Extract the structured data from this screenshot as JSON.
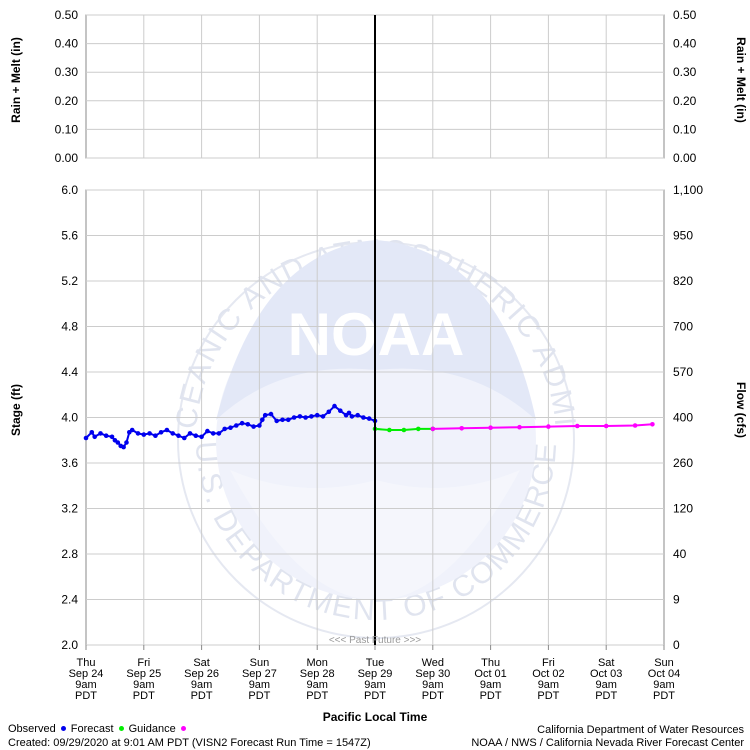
{
  "chart_data": {
    "type": "line",
    "upper_panel": {
      "left_ylabel": "Rain + Melt (in)",
      "right_ylabel": "Rain + Melt (in)",
      "ylim": [
        0.0,
        0.5
      ],
      "yticks": [
        "0.00",
        "0.10",
        "0.20",
        "0.30",
        "0.40",
        "0.50"
      ]
    },
    "lower_panel": {
      "left_ylabel": "Stage (ft)",
      "right_ylabel": "Flow (cfs)",
      "ylim": [
        2.0,
        6.0
      ],
      "left_yticks": [
        {
          "label": "2.0",
          "value": 2.0
        },
        {
          "label": "2.4",
          "value": 2.4
        },
        {
          "label": "2.8",
          "value": 2.8
        },
        {
          "label": "3.2",
          "value": 3.2
        },
        {
          "label": "3.6",
          "value": 3.6
        },
        {
          "label": "4.0",
          "value": 4.0
        },
        {
          "label": "4.4",
          "value": 4.4
        },
        {
          "label": "4.8",
          "value": 4.8
        },
        {
          "label": "5.2",
          "value": 5.2
        },
        {
          "label": "5.6",
          "value": 5.6
        },
        {
          "label": "6.0",
          "value": 6.0
        }
      ],
      "right_yticks": [
        {
          "label": "0",
          "value": 2.0
        },
        {
          "label": "9",
          "value": 2.4
        },
        {
          "label": "40",
          "value": 2.8
        },
        {
          "label": "120",
          "value": 3.2
        },
        {
          "label": "260",
          "value": 3.6
        },
        {
          "label": "400",
          "value": 4.0
        },
        {
          "label": "570",
          "value": 4.4
        },
        {
          "label": "700",
          "value": 4.8
        },
        {
          "label": "820",
          "value": 5.2
        },
        {
          "label": "950",
          "value": 5.6
        },
        {
          "label": "1,100",
          "value": 6.0
        }
      ],
      "past_future_label": "<<< Past   Future >>>"
    },
    "xlabel": "Pacific Local Time",
    "xlim": [
      0,
      10
    ],
    "now_x": 5,
    "x_categories": [
      [
        "Thu",
        "Sep 24",
        "9am",
        "PDT"
      ],
      [
        "Fri",
        "Sep 25",
        "9am",
        "PDT"
      ],
      [
        "Sat",
        "Sep 26",
        "9am",
        "PDT"
      ],
      [
        "Sun",
        "Sep 27",
        "9am",
        "PDT"
      ],
      [
        "Mon",
        "Sep 28",
        "9am",
        "PDT"
      ],
      [
        "Tue",
        "Sep 29",
        "9am",
        "PDT"
      ],
      [
        "Wed",
        "Sep 30",
        "9am",
        "PDT"
      ],
      [
        "Thu",
        "Oct 01",
        "9am",
        "PDT"
      ],
      [
        "Fri",
        "Oct 02",
        "9am",
        "PDT"
      ],
      [
        "Sat",
        "Oct 03",
        "9am",
        "PDT"
      ],
      [
        "Sun",
        "Oct 04",
        "9am",
        "PDT"
      ]
    ],
    "series": [
      {
        "name": "Observed",
        "color": "#0000ee",
        "x": [
          0,
          0.1,
          0.15,
          0.25,
          0.35,
          0.45,
          0.5,
          0.55,
          0.6,
          0.65,
          0.7,
          0.75,
          0.8,
          0.9,
          1.0,
          1.1,
          1.2,
          1.3,
          1.4,
          1.5,
          1.6,
          1.7,
          1.8,
          1.9,
          2.0,
          2.1,
          2.2,
          2.3,
          2.4,
          2.5,
          2.6,
          2.7,
          2.8,
          2.9,
          3.0,
          3.05,
          3.1,
          3.2,
          3.3,
          3.4,
          3.5,
          3.6,
          3.7,
          3.8,
          3.9,
          4.0,
          4.1,
          4.2,
          4.3,
          4.4,
          4.5,
          4.55,
          4.6,
          4.7,
          4.8,
          4.9,
          5.0
        ],
        "y": [
          3.82,
          3.87,
          3.83,
          3.86,
          3.84,
          3.83,
          3.8,
          3.78,
          3.75,
          3.74,
          3.78,
          3.87,
          3.89,
          3.86,
          3.85,
          3.86,
          3.84,
          3.87,
          3.89,
          3.86,
          3.84,
          3.82,
          3.86,
          3.84,
          3.83,
          3.88,
          3.86,
          3.86,
          3.9,
          3.91,
          3.93,
          3.95,
          3.94,
          3.92,
          3.93,
          3.98,
          4.02,
          4.03,
          3.97,
          3.98,
          3.98,
          4.0,
          4.01,
          4.0,
          4.01,
          4.02,
          4.01,
          4.05,
          4.1,
          4.06,
          4.02,
          4.04,
          4.01,
          4.02,
          4.0,
          3.99,
          3.97
        ]
      },
      {
        "name": "Forecast",
        "color": "#00ee00",
        "x": [
          5.0,
          5.25,
          5.5,
          5.75,
          6.0
        ],
        "y": [
          3.9,
          3.89,
          3.89,
          3.9,
          3.9
        ]
      },
      {
        "name": "Guidance",
        "color": "#ff00ff",
        "x": [
          6.0,
          6.5,
          7.0,
          7.5,
          8.0,
          8.5,
          9.0,
          9.5,
          9.8
        ],
        "y": [
          3.9,
          3.905,
          3.91,
          3.915,
          3.92,
          3.925,
          3.925,
          3.93,
          3.94
        ]
      }
    ]
  },
  "legend": {
    "observed": "Observed",
    "forecast": "Forecast",
    "guidance": "Guidance"
  },
  "footer": {
    "created": "Created: 09/29/2020 at 9:01 AM PDT   (VISN2 Forecast Run Time = 1547Z)",
    "agency1": "California Department of Water Resources",
    "agency2": "NOAA / NWS / California Nevada River Forecast Center"
  },
  "watermark": {
    "logo_text": "NOAA",
    "ring_top": "NATIONAL OCEANIC AND ATMOSPHERIC ADMINISTRATION",
    "ring_bottom": "U.S. DEPARTMENT OF COMMERCE"
  }
}
